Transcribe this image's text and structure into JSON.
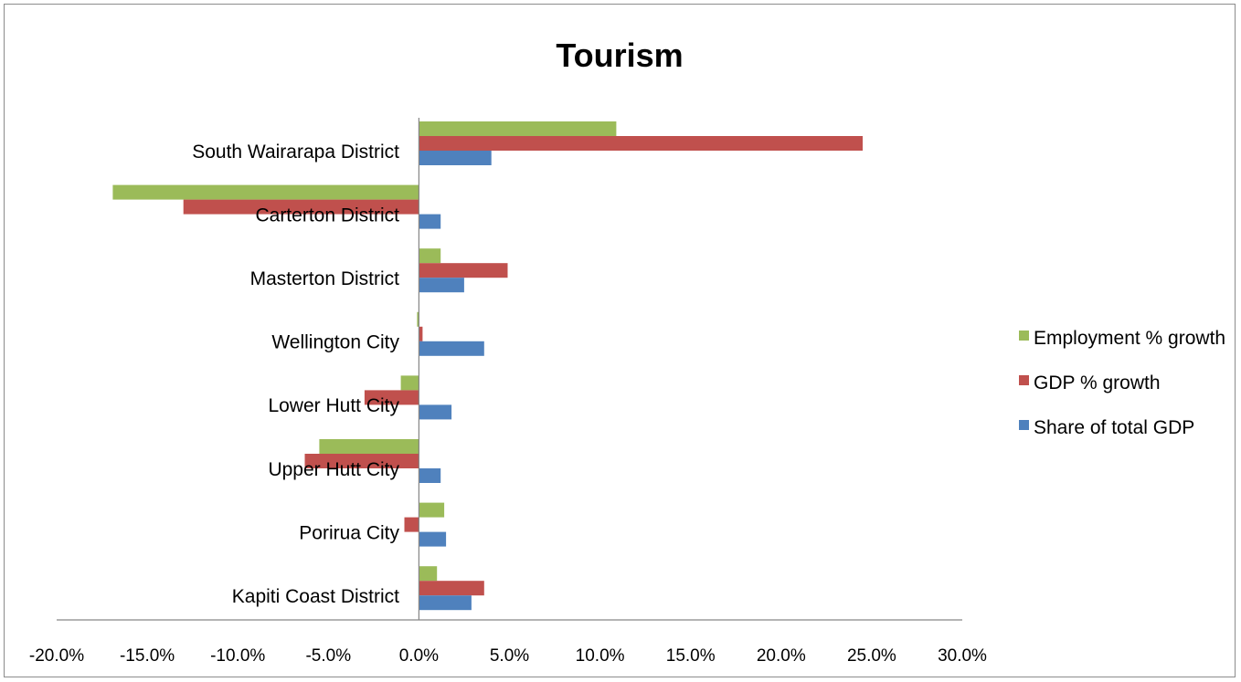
{
  "chart_data": {
    "type": "bar",
    "orientation": "horizontal",
    "title": "Tourism",
    "categories": [
      "South Wairarapa District",
      "Carterton District",
      "Masterton District",
      "Wellington City",
      "Lower Hutt City",
      "Upper Hutt City",
      "Porirua City",
      "Kapiti Coast District"
    ],
    "series": [
      {
        "name": "Employment % growth",
        "color": "#9bbb59",
        "values": [
          10.9,
          -16.9,
          1.2,
          -0.1,
          -1.0,
          -5.5,
          1.4,
          1.0
        ]
      },
      {
        "name": "GDP % growth",
        "color": "#c0504d",
        "values": [
          24.5,
          -13.0,
          4.9,
          0.2,
          -3.0,
          -6.3,
          -0.8,
          3.6
        ]
      },
      {
        "name": "Share of total GDP",
        "color": "#4f81bd",
        "values": [
          4.0,
          1.2,
          2.5,
          3.6,
          1.8,
          1.2,
          1.5,
          2.9
        ]
      }
    ],
    "xlim": [
      -20,
      30
    ],
    "xticks": [
      -20,
      -15,
      -10,
      -5,
      0,
      5,
      10,
      15,
      20,
      25,
      30
    ],
    "xtick_labels": [
      "-20.0%",
      "-15.0%",
      "-10.0%",
      "-5.0%",
      "0.0%",
      "5.0%",
      "10.0%",
      "15.0%",
      "20.0%",
      "25.0%",
      "30.0%"
    ],
    "xlabel": "",
    "ylabel": "",
    "grid": false,
    "legend_position": "right"
  }
}
